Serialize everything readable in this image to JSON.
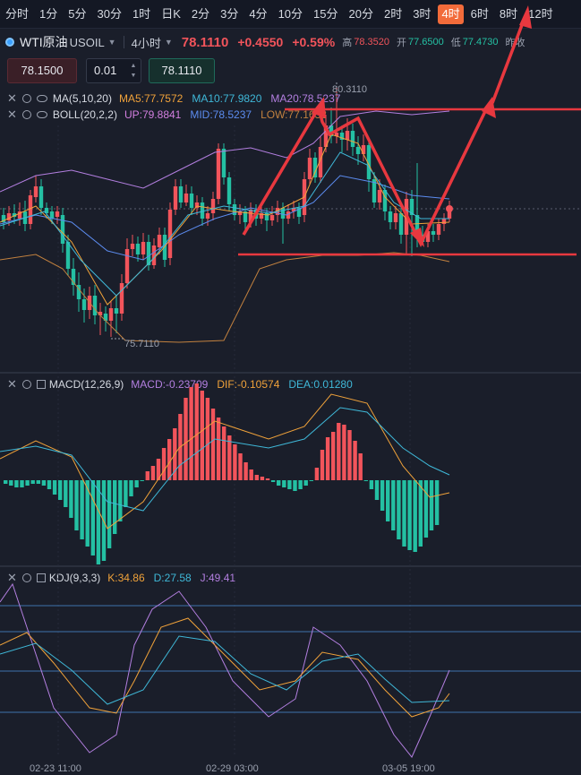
{
  "timeframes": [
    "分时",
    "1分",
    "5分",
    "30分",
    "1时",
    "日K",
    "2分",
    "3分",
    "4分",
    "10分",
    "15分",
    "20分",
    "2时",
    "3时",
    "4时",
    "6时",
    "8时",
    "12时"
  ],
  "active_timeframe_index": 14,
  "symbol": {
    "name": "WTI原油",
    "code": "USOIL",
    "period": "4小时",
    "price": "78.1110",
    "change": "+0.4550",
    "change_pct": "+0.59%",
    "high_label": "高",
    "high": "78.3520",
    "open_label": "开",
    "open": "77.6500",
    "low_label": "低",
    "low": "77.4730",
    "prev_close_label": "昨收"
  },
  "order": {
    "sell_price": "78.1500",
    "quantity": "0.01",
    "buy_price": "78.1110"
  },
  "indicators": {
    "ma": {
      "name": "MA(5,10,20)",
      "ma5": "MA5:77.7572",
      "ma10": "MA10:77.9820",
      "ma20": "MA20:78.5237"
    },
    "boll": {
      "name": "BOLL(20,2,2)",
      "up": "UP:79.8841",
      "mid": "MID:78.5237",
      "low": "LOW:77.1632"
    },
    "macd": {
      "name": "MACD(12,26,9)",
      "macd": "MACD:-0.23709",
      "dif": "DIF:-0.10574",
      "dea": "DEA:0.01280"
    },
    "kdj": {
      "name": "KDJ(9,3,3)",
      "k": "K:34.86",
      "d": "D:27.58",
      "j": "J:49.41"
    }
  },
  "chart_labels": {
    "high_mark": "80.3110",
    "low_mark": "75.7110"
  },
  "x_axis": [
    "02-23 11:00",
    "02-29 03:00",
    "03-05 19:00"
  ],
  "colors": {
    "up": "#f2545b",
    "down": "#24c0a3",
    "active_tab": "#f26b3a",
    "annotation": "#e8383f"
  }
}
